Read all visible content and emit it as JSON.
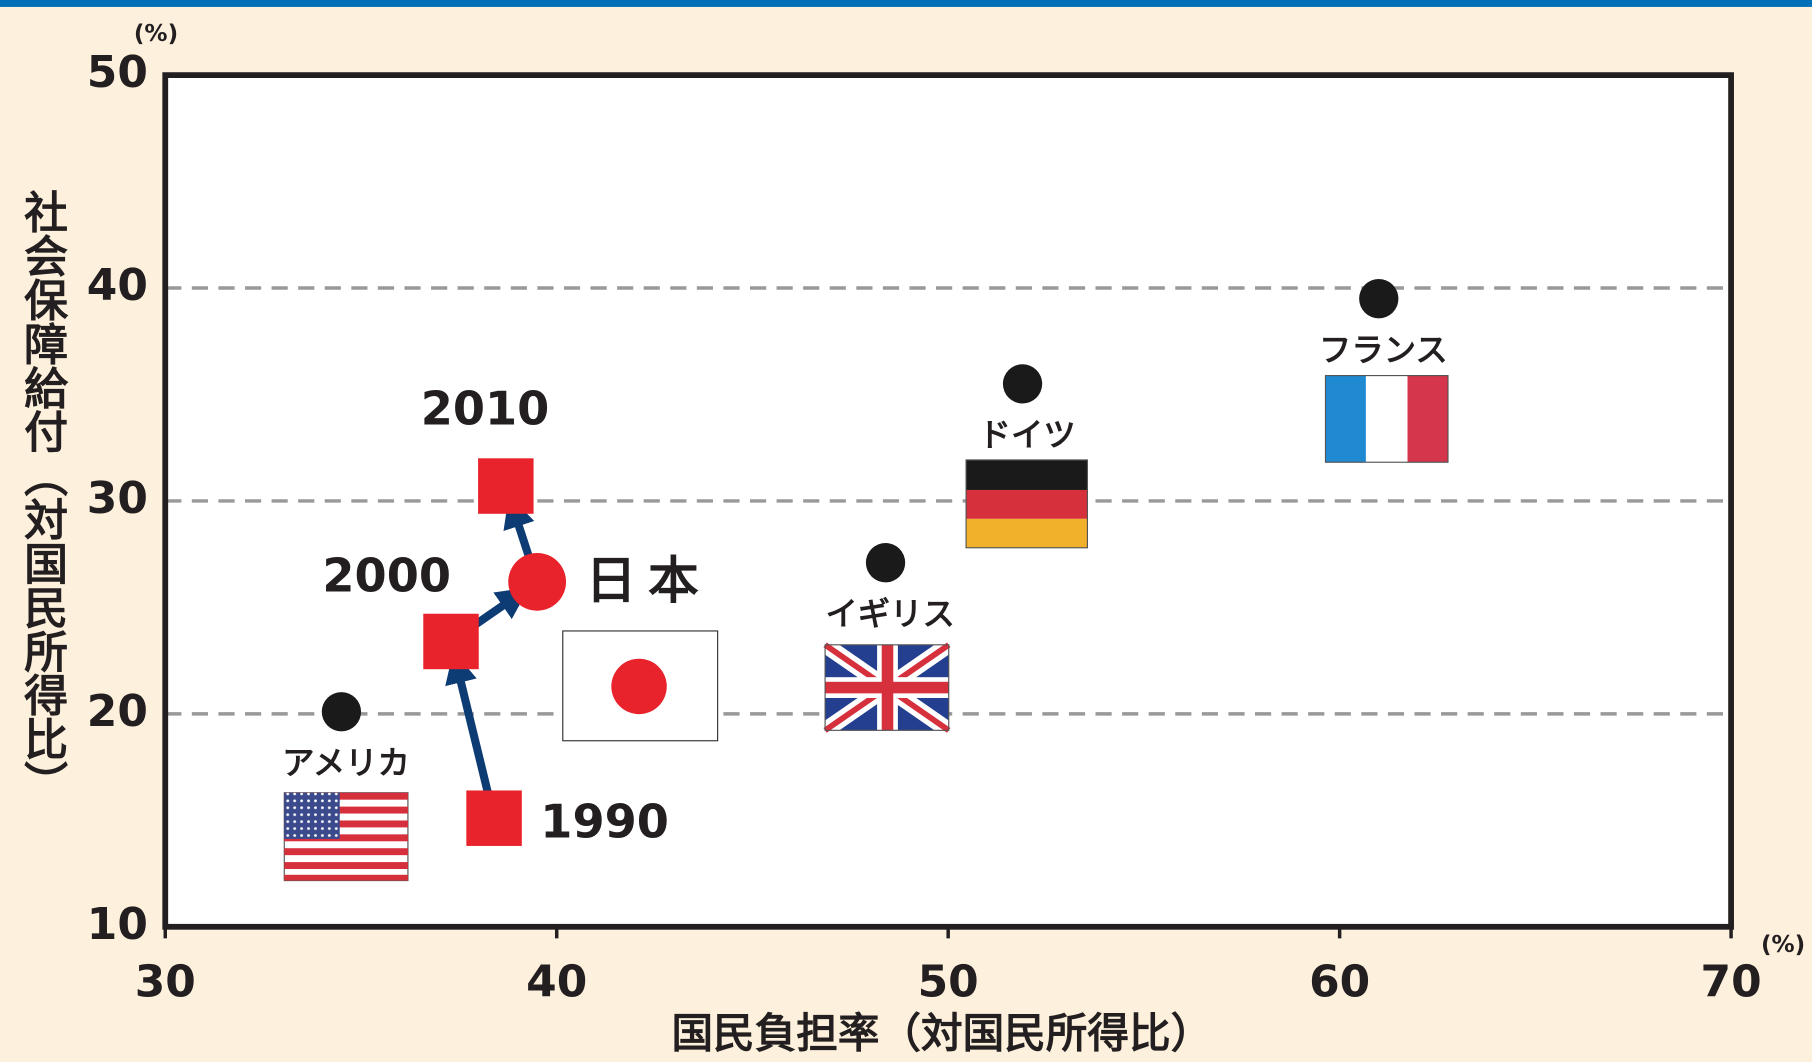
{
  "chart_data": {
    "type": "scatter",
    "x_label": "国民負担率（対国民所得比）",
    "y_label": "社会保障給付（対国民所得比）",
    "x_unit": "(%)",
    "y_unit": "(%)",
    "xlim": [
      30,
      70
    ],
    "ylim": [
      10,
      50
    ],
    "xticks": [
      30,
      40,
      50,
      60,
      70
    ],
    "yticks": [
      10,
      20,
      30,
      40,
      50
    ],
    "grid": true,
    "series": [
      {
        "name": "日本",
        "color": "#e8232b",
        "x": [
          38.4,
          37.3,
          39.5,
          38.7
        ],
        "values": [
          15.1,
          23.4,
          26.2,
          30.7
        ],
        "point_labels": [
          "1990",
          "2000",
          null,
          "2010"
        ],
        "markers": [
          "square",
          "square",
          "circle",
          "square"
        ]
      },
      {
        "name": "アメリカ",
        "color": "#1a1a1a",
        "x": [
          34.5
        ],
        "values": [
          20.1
        ]
      },
      {
        "name": "イギリス",
        "color": "#1a1a1a",
        "x": [
          48.4
        ],
        "values": [
          27.1
        ]
      },
      {
        "name": "ドイツ",
        "color": "#1a1a1a",
        "x": [
          51.9
        ],
        "values": [
          35.5
        ]
      },
      {
        "name": "フランス",
        "color": "#1a1a1a",
        "x": [
          61.0
        ],
        "values": [
          39.5
        ]
      }
    ]
  }
}
